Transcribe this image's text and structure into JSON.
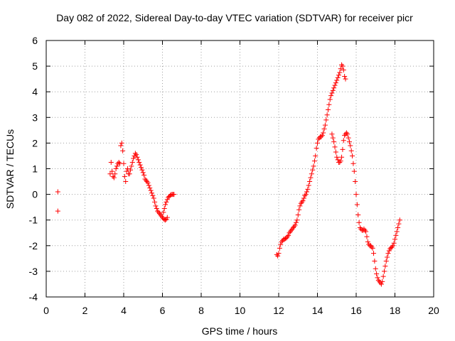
{
  "chart_data": {
    "type": "scatter",
    "title": "Day 082 of 2022, Sidereal Day-to-day VTEC variation (SDTVAR) for receiver picr",
    "xlabel": "GPS time / hours",
    "ylabel": "SDTVAR / TECUs",
    "xlim": [
      0,
      20
    ],
    "ylim": [
      -4,
      6
    ],
    "xticks": [
      "0",
      "2",
      "4",
      "6",
      "8",
      "10",
      "12",
      "14",
      "16",
      "18",
      "20"
    ],
    "yticks": [
      "-4",
      "-3",
      "-2",
      "-1",
      "0",
      "1",
      "2",
      "3",
      "4",
      "5",
      "6"
    ],
    "grid": true,
    "marker": "+",
    "marker_color": "#ff0000",
    "series": [
      {
        "name": "SDTVAR",
        "points": [
          [
            0.6,
            0.1
          ],
          [
            0.6,
            -0.65
          ],
          [
            3.3,
            0.8
          ],
          [
            3.35,
            1.25
          ],
          [
            3.4,
            0.9
          ],
          [
            3.45,
            0.7
          ],
          [
            3.5,
            0.65
          ],
          [
            3.55,
            0.8
          ],
          [
            3.6,
            1.0
          ],
          [
            3.65,
            1.1
          ],
          [
            3.7,
            1.2
          ],
          [
            3.75,
            1.25
          ],
          [
            3.8,
            1.2
          ],
          [
            3.85,
            1.9
          ],
          [
            3.9,
            2.0
          ],
          [
            3.95,
            1.7
          ],
          [
            4.0,
            1.2
          ],
          [
            4.05,
            0.7
          ],
          [
            4.1,
            0.5
          ],
          [
            4.15,
            0.9
          ],
          [
            4.2,
            1.0
          ],
          [
            4.25,
            0.8
          ],
          [
            4.3,
            0.8
          ],
          [
            4.35,
            0.95
          ],
          [
            4.4,
            1.1
          ],
          [
            4.45,
            1.25
          ],
          [
            4.5,
            1.4
          ],
          [
            4.55,
            1.5
          ],
          [
            4.6,
            1.6
          ],
          [
            4.65,
            1.55
          ],
          [
            4.7,
            1.45
          ],
          [
            4.75,
            1.35
          ],
          [
            4.8,
            1.25
          ],
          [
            4.85,
            1.15
          ],
          [
            4.9,
            1.05
          ],
          [
            4.95,
            0.95
          ],
          [
            5.0,
            0.85
          ],
          [
            5.05,
            0.75
          ],
          [
            5.1,
            0.6
          ],
          [
            5.15,
            0.55
          ],
          [
            5.2,
            0.5
          ],
          [
            5.25,
            0.45
          ],
          [
            5.3,
            0.35
          ],
          [
            5.35,
            0.25
          ],
          [
            5.4,
            0.15
          ],
          [
            5.45,
            0.05
          ],
          [
            5.5,
            -0.05
          ],
          [
            5.55,
            -0.15
          ],
          [
            5.6,
            -0.3
          ],
          [
            5.65,
            -0.45
          ],
          [
            5.7,
            -0.55
          ],
          [
            5.75,
            -0.65
          ],
          [
            5.8,
            -0.7
          ],
          [
            5.85,
            -0.75
          ],
          [
            5.9,
            -0.8
          ],
          [
            5.95,
            -0.85
          ],
          [
            6.0,
            -0.9
          ],
          [
            6.05,
            -0.95
          ],
          [
            6.1,
            -0.98
          ],
          [
            6.15,
            -1.0
          ],
          [
            6.2,
            -0.97
          ],
          [
            6.25,
            -0.9
          ],
          [
            6.05,
            -0.7
          ],
          [
            6.1,
            -0.55
          ],
          [
            6.15,
            -0.4
          ],
          [
            6.2,
            -0.3
          ],
          [
            6.25,
            -0.2
          ],
          [
            6.3,
            -0.12
          ],
          [
            6.35,
            -0.08
          ],
          [
            6.4,
            -0.04
          ],
          [
            6.45,
            -0.01
          ],
          [
            6.5,
            0.0
          ],
          [
            6.55,
            0.0
          ],
          [
            6.6,
            0.0
          ],
          [
            11.9,
            -2.35
          ],
          [
            11.95,
            -2.4
          ],
          [
            12.0,
            -2.3
          ],
          [
            12.05,
            -2.1
          ],
          [
            12.1,
            -1.95
          ],
          [
            12.15,
            -1.85
          ],
          [
            12.2,
            -1.8
          ],
          [
            12.25,
            -1.75
          ],
          [
            12.3,
            -1.75
          ],
          [
            12.35,
            -1.72
          ],
          [
            12.4,
            -1.7
          ],
          [
            12.45,
            -1.65
          ],
          [
            12.5,
            -1.6
          ],
          [
            12.55,
            -1.5
          ],
          [
            12.6,
            -1.45
          ],
          [
            12.65,
            -1.4
          ],
          [
            12.7,
            -1.35
          ],
          [
            12.75,
            -1.3
          ],
          [
            12.8,
            -1.25
          ],
          [
            12.85,
            -1.2
          ],
          [
            12.9,
            -1.1
          ],
          [
            12.95,
            -1.0
          ],
          [
            13.0,
            -0.8
          ],
          [
            13.05,
            -0.6
          ],
          [
            13.1,
            -0.45
          ],
          [
            13.15,
            -0.35
          ],
          [
            13.2,
            -0.3
          ],
          [
            13.25,
            -0.25
          ],
          [
            13.3,
            -0.15
          ],
          [
            13.35,
            -0.05
          ],
          [
            13.4,
            0.0
          ],
          [
            13.45,
            0.1
          ],
          [
            13.5,
            0.2
          ],
          [
            13.55,
            0.35
          ],
          [
            13.6,
            0.5
          ],
          [
            13.65,
            0.65
          ],
          [
            13.7,
            0.8
          ],
          [
            13.75,
            0.95
          ],
          [
            13.8,
            1.1
          ],
          [
            13.85,
            1.3
          ],
          [
            13.9,
            1.5
          ],
          [
            13.95,
            1.8
          ],
          [
            14.0,
            2.0
          ],
          [
            14.05,
            2.15
          ],
          [
            14.1,
            2.2
          ],
          [
            14.15,
            2.25
          ],
          [
            14.2,
            2.25
          ],
          [
            14.25,
            2.3
          ],
          [
            14.3,
            2.4
          ],
          [
            14.35,
            2.55
          ],
          [
            14.4,
            2.7
          ],
          [
            14.45,
            2.9
          ],
          [
            14.5,
            3.1
          ],
          [
            14.55,
            3.3
          ],
          [
            14.6,
            3.5
          ],
          [
            14.65,
            3.7
          ],
          [
            14.7,
            3.85
          ],
          [
            14.75,
            3.95
          ],
          [
            14.8,
            4.05
          ],
          [
            14.85,
            4.15
          ],
          [
            14.9,
            4.25
          ],
          [
            14.95,
            4.35
          ],
          [
            15.0,
            4.45
          ],
          [
            15.05,
            4.55
          ],
          [
            15.1,
            4.65
          ],
          [
            15.15,
            4.75
          ],
          [
            15.2,
            4.9
          ],
          [
            15.25,
            5.05
          ],
          [
            15.3,
            5.0
          ],
          [
            15.35,
            4.85
          ],
          [
            15.4,
            4.6
          ],
          [
            15.45,
            4.5
          ],
          [
            14.75,
            2.35
          ],
          [
            14.8,
            2.2
          ],
          [
            14.85,
            2.05
          ],
          [
            14.9,
            1.85
          ],
          [
            14.95,
            1.65
          ],
          [
            15.0,
            1.45
          ],
          [
            15.05,
            1.35
          ],
          [
            15.1,
            1.25
          ],
          [
            15.15,
            1.25
          ],
          [
            15.2,
            1.3
          ],
          [
            15.25,
            1.45
          ],
          [
            15.3,
            1.75
          ],
          [
            15.35,
            2.1
          ],
          [
            15.4,
            2.3
          ],
          [
            15.45,
            2.35
          ],
          [
            15.5,
            2.4
          ],
          [
            15.55,
            2.35
          ],
          [
            15.6,
            2.2
          ],
          [
            15.65,
            2.05
          ],
          [
            15.7,
            1.9
          ],
          [
            15.75,
            1.7
          ],
          [
            15.8,
            1.5
          ],
          [
            15.85,
            1.2
          ],
          [
            15.9,
            0.9
          ],
          [
            15.95,
            0.5
          ],
          [
            16.0,
            0.0
          ],
          [
            16.05,
            -0.4
          ],
          [
            16.1,
            -0.8
          ],
          [
            16.15,
            -1.1
          ],
          [
            16.2,
            -1.3
          ],
          [
            16.25,
            -1.35
          ],
          [
            16.3,
            -1.4
          ],
          [
            16.35,
            -1.4
          ],
          [
            16.4,
            -1.35
          ],
          [
            16.45,
            -1.4
          ],
          [
            16.5,
            -1.45
          ],
          [
            16.55,
            -1.65
          ],
          [
            16.6,
            -1.85
          ],
          [
            16.65,
            -1.95
          ],
          [
            16.7,
            -2.0
          ],
          [
            16.75,
            -2.0
          ],
          [
            16.8,
            -2.05
          ],
          [
            16.85,
            -2.1
          ],
          [
            16.9,
            -2.3
          ],
          [
            16.95,
            -2.6
          ],
          [
            17.0,
            -2.9
          ],
          [
            17.05,
            -3.1
          ],
          [
            17.1,
            -3.25
          ],
          [
            17.15,
            -3.35
          ],
          [
            17.2,
            -3.4
          ],
          [
            17.25,
            -3.45
          ],
          [
            17.3,
            -3.5
          ],
          [
            17.35,
            -3.4
          ],
          [
            17.4,
            -3.2
          ],
          [
            17.45,
            -3.0
          ],
          [
            17.5,
            -2.8
          ],
          [
            17.55,
            -2.6
          ],
          [
            17.6,
            -2.45
          ],
          [
            17.65,
            -2.3
          ],
          [
            17.7,
            -2.2
          ],
          [
            17.75,
            -2.12
          ],
          [
            17.8,
            -2.08
          ],
          [
            17.85,
            -2.05
          ],
          [
            17.9,
            -2.0
          ],
          [
            17.95,
            -1.9
          ],
          [
            18.0,
            -1.75
          ],
          [
            18.05,
            -1.6
          ],
          [
            18.1,
            -1.45
          ],
          [
            18.15,
            -1.3
          ],
          [
            18.2,
            -1.15
          ],
          [
            18.25,
            -1.0
          ]
        ]
      }
    ]
  }
}
